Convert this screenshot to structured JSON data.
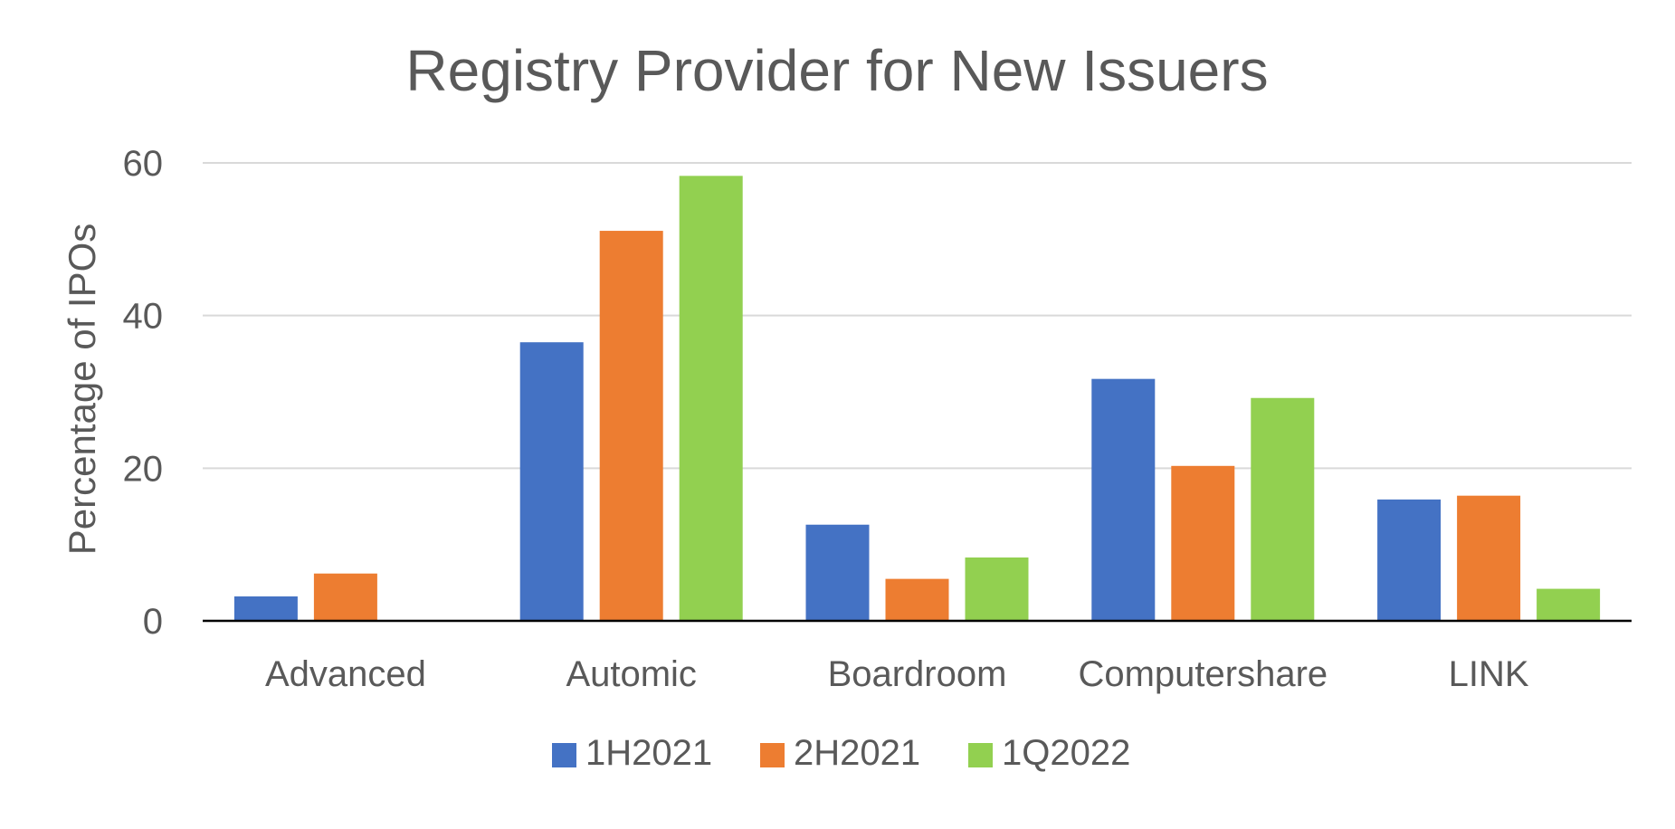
{
  "chart_data": {
    "type": "bar",
    "title": "Registry Provider for New Issuers",
    "xlabel": "",
    "ylabel": "Percentage of IPOs",
    "categories": [
      "Advanced",
      "Automic",
      "Boardroom",
      "Computershare",
      "LINK"
    ],
    "series": [
      {
        "name": "1H2021",
        "color": "#4472C4",
        "values": [
          3.2,
          36.5,
          12.6,
          31.7,
          15.9
        ]
      },
      {
        "name": "2H2021",
        "color": "#ED7D31",
        "values": [
          6.2,
          51.1,
          5.5,
          20.3,
          16.4
        ]
      },
      {
        "name": "1Q2022",
        "color": "#92D050",
        "values": [
          0,
          58.3,
          8.3,
          29.2,
          4.2
        ]
      }
    ],
    "ylim": [
      0,
      60
    ],
    "yticks": [
      0,
      20,
      40,
      60
    ],
    "grid": true,
    "legend_position": "bottom"
  }
}
